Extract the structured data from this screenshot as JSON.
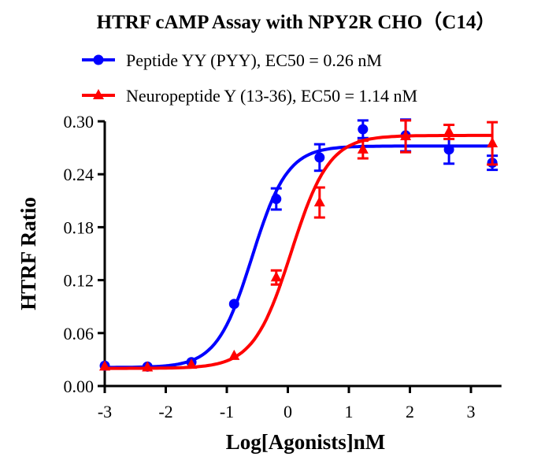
{
  "chart_data": {
    "type": "scatter",
    "title": "HTRF cAMP Assay with NPY2R CHO（C14）",
    "xlabel": "Log[Agonists]nM",
    "ylabel": "HTRF Ratio",
    "xlim": [
      -3,
      3.5
    ],
    "ylim": [
      0,
      0.3
    ],
    "xticks": [
      "-3",
      "-2",
      "-1",
      "0",
      "1",
      "2",
      "3"
    ],
    "yticks": [
      "0.00",
      "0.06",
      "0.12",
      "0.18",
      "0.24",
      "0.30"
    ],
    "grid": false,
    "legend_position": "top",
    "x": [
      -3,
      -2.3,
      -1.58,
      -0.88,
      -0.19,
      0.52,
      1.23,
      1.93,
      2.64,
      3.35
    ],
    "series": [
      {
        "name": "Peptide YY (PYY),  EC50 = 0.26 nM",
        "color": "#0000ff",
        "marker": "circle",
        "values": [
          0.023,
          0.022,
          0.027,
          0.093,
          0.212,
          0.259,
          0.291,
          0.284,
          0.268,
          0.253
        ],
        "errors": [
          0,
          0,
          0,
          0,
          0.012,
          0.015,
          0.01,
          0.018,
          0.016,
          0.008
        ],
        "fit": {
          "bottom": 0.021,
          "top": 0.272,
          "log_ec50": -0.585,
          "hill": 1.5
        }
      },
      {
        "name": "Neuropeptide Y (13-36),  EC50 = 1.14 nM",
        "color": "#ff0000",
        "marker": "triangle",
        "values": [
          0.022,
          0.021,
          0.024,
          0.034,
          0.123,
          0.208,
          0.268,
          0.283,
          0.288,
          0.275
        ],
        "errors": [
          0,
          0,
          0,
          0,
          0.008,
          0.017,
          0.01,
          0.018,
          0.008,
          0.024
        ],
        "fit": {
          "bottom": 0.02,
          "top": 0.284,
          "log_ec50": 0.057,
          "hill": 1.4
        }
      }
    ]
  }
}
